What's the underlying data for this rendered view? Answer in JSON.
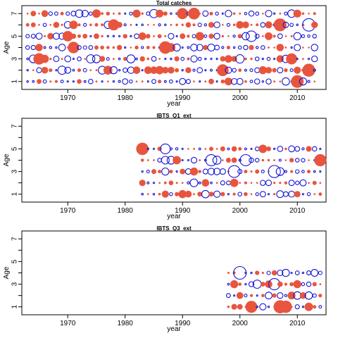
{
  "chart_data": [
    {
      "type": "scatter",
      "title": "Total catches",
      "xlabel": "year",
      "ylabel": "Age",
      "xlim": [
        1962,
        2015
      ],
      "ylim": [
        0.3,
        7.7
      ],
      "xticks": [
        1970,
        1980,
        1990,
        2000,
        2010
      ],
      "yticks": [
        1,
        2,
        3,
        4,
        5,
        6,
        7
      ],
      "ytick_labels": [
        "1",
        "",
        "3",
        "",
        "5",
        "",
        "7"
      ],
      "colors": {
        "positive": "#E8553F",
        "negative": "#1515D6"
      },
      "year_range": [
        1963,
        2013
      ],
      "ages": [
        1,
        2,
        3,
        4,
        5,
        6,
        7
      ],
      "encoding": "bubble plot of residuals by year and age; filled red = positive, open blue = negative; size = magnitude"
    },
    {
      "type": "scatter",
      "title": "IBTS_Q1_ext",
      "xlabel": "year",
      "ylabel": "Age",
      "xlim": [
        1962,
        2015
      ],
      "ylim": [
        0.3,
        7.7
      ],
      "xticks": [
        1970,
        1980,
        1990,
        2000,
        2010
      ],
      "yticks": [
        1,
        2,
        3,
        4,
        5,
        6,
        7
      ],
      "ytick_labels": [
        "1",
        "",
        "3",
        "",
        "5",
        "",
        "7"
      ],
      "colors": {
        "positive": "#E8553F",
        "negative": "#1515D6"
      },
      "year_range": [
        1983,
        2014
      ],
      "ages": [
        1,
        2,
        3,
        4,
        5
      ],
      "encoding": "bubble plot of residuals by year and age"
    },
    {
      "type": "scatter",
      "title": "IBTS_Q3_ext",
      "xlabel": "year",
      "ylabel": "Age",
      "xlim": [
        1962,
        2015
      ],
      "ylim": [
        0.3,
        7.7
      ],
      "xticks": [
        1970,
        1980,
        1990,
        2000,
        2010
      ],
      "yticks": [
        1,
        2,
        3,
        4,
        5,
        6,
        7
      ],
      "ytick_labels": [
        "1",
        "",
        "3",
        "",
        "5",
        "",
        "7"
      ],
      "colors": {
        "positive": "#E8553F",
        "negative": "#1515D6"
      },
      "year_range": [
        1998,
        2014
      ],
      "ages": [
        1,
        2,
        3,
        4
      ],
      "encoding": "bubble plot of residuals by year and age"
    }
  ]
}
